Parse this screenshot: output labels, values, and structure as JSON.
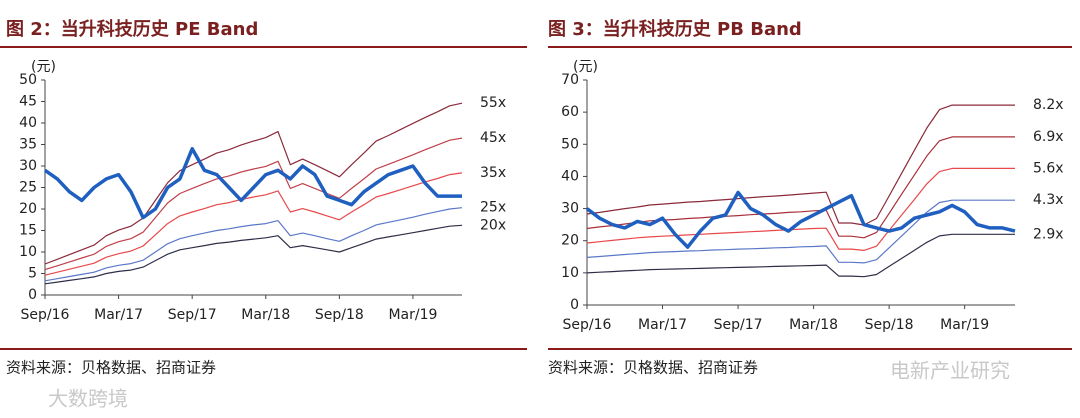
{
  "chart_data": [
    {
      "type": "line",
      "title": "图 2：当升科技历史 PE Band",
      "ylabel": "(元)",
      "source": "资料来源：贝格数据、招商证券",
      "categories": [
        "Sep/16",
        null,
        null,
        null,
        null,
        null,
        "Mar/17",
        null,
        null,
        null,
        null,
        null,
        "Sep/17",
        null,
        null,
        null,
        null,
        null,
        "Mar/18",
        null,
        null,
        null,
        null,
        null,
        "Sep/18",
        null,
        null,
        null,
        null,
        null,
        "Mar/19",
        null,
        null,
        null,
        null
      ],
      "ylim": [
        0,
        50
      ],
      "yticks": [
        0,
        5,
        10,
        15,
        20,
        25,
        30,
        35,
        40,
        45,
        50
      ],
      "series": [
        {
          "name": "55x",
          "color": "#8b2a3a",
          "values": [
            7.2,
            8.3,
            9.4,
            10.5,
            11.6,
            13.8,
            15.1,
            16.0,
            17.9,
            22.0,
            26.1,
            28.9,
            30.3,
            31.6,
            33.0,
            33.8,
            34.9,
            35.8,
            36.6,
            38.0,
            30.3,
            31.6,
            30.3,
            28.9,
            27.5,
            30.3,
            33.0,
            35.8,
            37.1,
            38.5,
            39.9,
            41.3,
            42.6,
            44.0,
            44.6
          ]
        },
        {
          "name": "45x",
          "color": "#c0404a",
          "values": [
            5.9,
            6.8,
            7.7,
            8.6,
            9.5,
            11.3,
            12.4,
            13.1,
            14.6,
            18.0,
            21.4,
            23.6,
            24.8,
            25.9,
            27.0,
            27.7,
            28.6,
            29.3,
            29.9,
            31.1,
            24.8,
            25.9,
            24.8,
            23.6,
            22.5,
            24.8,
            27.0,
            29.3,
            30.4,
            31.5,
            32.6,
            33.8,
            34.9,
            36.0,
            36.5
          ]
        },
        {
          "name": "35x",
          "color": "#e8484a",
          "values": [
            4.6,
            5.3,
            6.0,
            6.7,
            7.4,
            8.8,
            9.6,
            10.2,
            11.4,
            14.0,
            16.6,
            18.4,
            19.3,
            20.1,
            21.0,
            21.5,
            22.2,
            22.8,
            23.3,
            24.2,
            19.3,
            20.1,
            19.3,
            18.4,
            17.5,
            19.3,
            21.0,
            22.8,
            23.6,
            24.5,
            25.4,
            26.3,
            27.1,
            28.0,
            28.4
          ]
        },
        {
          "name": "25x",
          "color": "#5b78c8",
          "values": [
            3.3,
            3.8,
            4.3,
            4.8,
            5.3,
            6.3,
            6.9,
            7.3,
            8.1,
            10.0,
            11.9,
            13.1,
            13.8,
            14.4,
            15.0,
            15.4,
            15.9,
            16.3,
            16.6,
            17.3,
            13.8,
            14.4,
            13.8,
            13.1,
            12.5,
            13.8,
            15.0,
            16.3,
            16.9,
            17.5,
            18.1,
            18.8,
            19.4,
            20.0,
            20.3
          ]
        },
        {
          "name": "20x",
          "color": "#2e2e48",
          "values": [
            2.6,
            3.0,
            3.4,
            3.8,
            4.2,
            5.0,
            5.5,
            5.8,
            6.5,
            8.0,
            9.5,
            10.5,
            11.0,
            11.5,
            12.0,
            12.3,
            12.7,
            13.0,
            13.3,
            13.8,
            11.0,
            11.5,
            11.0,
            10.5,
            10.0,
            11.0,
            12.0,
            13.0,
            13.5,
            14.0,
            14.5,
            15.0,
            15.5,
            16.0,
            16.2
          ]
        },
        {
          "color": "#1f5fc0",
          "values": [
            29,
            27,
            24,
            22,
            25,
            27,
            28,
            24,
            18,
            20,
            25,
            27,
            34,
            29,
            28,
            25,
            22,
            25,
            28,
            29,
            27,
            30,
            28,
            23,
            22,
            21,
            24,
            26,
            28,
            29,
            30,
            26,
            23,
            23,
            23
          ]
        }
      ]
    },
    {
      "type": "line",
      "title": "图 3：当升科技历史 PB Band",
      "ylabel": "(元)",
      "source": "资料来源：贝格数据、招商证券",
      "categories": [
        "Sep/16",
        null,
        null,
        null,
        null,
        null,
        "Mar/17",
        null,
        null,
        null,
        null,
        null,
        "Sep/17",
        null,
        null,
        null,
        null,
        null,
        "Mar/18",
        null,
        null,
        null,
        null,
        null,
        "Sep/18",
        null,
        null,
        null,
        null,
        null,
        "Mar/19",
        null,
        null,
        null,
        null
      ],
      "ylim": [
        0,
        70
      ],
      "yticks": [
        0,
        10,
        20,
        30,
        40,
        50,
        60,
        70
      ],
      "series": [
        {
          "name": "8.2x",
          "color": "#8b2a3a",
          "values": [
            28.3,
            28.8,
            29.4,
            30.0,
            30.5,
            31.1,
            31.4,
            31.7,
            32.0,
            32.2,
            32.5,
            32.8,
            33.1,
            33.4,
            33.7,
            33.9,
            34.2,
            34.5,
            34.8,
            35.1,
            25.5,
            25.5,
            24.9,
            26.9,
            33.9,
            41.0,
            48.1,
            55.1,
            60.8,
            62.2,
            62.2,
            62.2,
            62.2,
            62.2,
            62.2
          ]
        },
        {
          "name": "6.9x",
          "color": "#a8303a",
          "values": [
            23.8,
            24.3,
            24.7,
            25.2,
            25.7,
            26.2,
            26.4,
            26.6,
            26.9,
            27.1,
            27.4,
            27.6,
            27.8,
            28.1,
            28.3,
            28.5,
            28.8,
            29.0,
            29.3,
            29.5,
            21.4,
            21.4,
            20.9,
            22.6,
            28.5,
            34.5,
            40.4,
            46.4,
            51.1,
            52.3,
            52.3,
            52.3,
            52.3,
            52.3,
            52.3
          ]
        },
        {
          "name": "5.6x",
          "color": "#e8484a",
          "values": [
            19.3,
            19.7,
            20.1,
            20.5,
            20.9,
            21.2,
            21.4,
            21.6,
            21.8,
            22.0,
            22.2,
            22.4,
            22.6,
            22.8,
            23.0,
            23.2,
            23.4,
            23.6,
            23.8,
            23.9,
            17.4,
            17.4,
            17.0,
            18.3,
            23.2,
            28.0,
            32.8,
            37.7,
            41.5,
            42.5,
            42.5,
            42.5,
            42.5,
            42.5,
            42.5
          ]
        },
        {
          "name": "4.3x",
          "color": "#5b78c8",
          "values": [
            14.8,
            15.1,
            15.4,
            15.7,
            16.0,
            16.3,
            16.5,
            16.6,
            16.8,
            16.9,
            17.1,
            17.2,
            17.4,
            17.5,
            17.6,
            17.8,
            17.9,
            18.1,
            18.2,
            18.4,
            13.3,
            13.3,
            13.1,
            14.1,
            17.8,
            21.5,
            25.2,
            28.9,
            31.9,
            32.6,
            32.6,
            32.6,
            32.6,
            32.6,
            32.6
          ]
        },
        {
          "name": "2.9x",
          "color": "#2e2e48",
          "values": [
            10.0,
            10.2,
            10.4,
            10.6,
            10.8,
            11.0,
            11.1,
            11.2,
            11.3,
            11.4,
            11.5,
            11.6,
            11.7,
            11.8,
            11.9,
            12.0,
            12.1,
            12.2,
            12.3,
            12.4,
            9.0,
            9.0,
            8.8,
            9.5,
            12.0,
            14.5,
            17.0,
            19.5,
            21.5,
            22.0,
            22.0,
            22.0,
            22.0,
            22.0,
            22.0
          ]
        },
        {
          "color": "#1f5fc0",
          "values": [
            30,
            27,
            25,
            24,
            26,
            25,
            27,
            22,
            18,
            23,
            27,
            28,
            35,
            30,
            28,
            25,
            23,
            26,
            28,
            30,
            32,
            34,
            25,
            24,
            23,
            24,
            27,
            28,
            29,
            31,
            29,
            25,
            24,
            24,
            23
          ]
        }
      ]
    }
  ],
  "watermarks": [
    "大数跨境",
    "电新产业研究"
  ]
}
